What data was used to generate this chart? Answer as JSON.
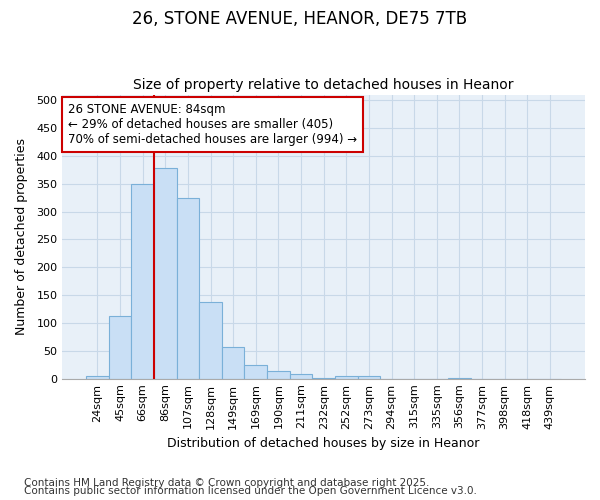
{
  "title1": "26, STONE AVENUE, HEANOR, DE75 7TB",
  "title2": "Size of property relative to detached houses in Heanor",
  "xlabel": "Distribution of detached houses by size in Heanor",
  "ylabel": "Number of detached properties",
  "categories": [
    "24sqm",
    "45sqm",
    "66sqm",
    "86sqm",
    "107sqm",
    "128sqm",
    "149sqm",
    "169sqm",
    "190sqm",
    "211sqm",
    "232sqm",
    "252sqm",
    "273sqm",
    "294sqm",
    "315sqm",
    "335sqm",
    "356sqm",
    "377sqm",
    "398sqm",
    "418sqm",
    "439sqm"
  ],
  "values": [
    5,
    113,
    350,
    378,
    325,
    137,
    57,
    25,
    14,
    9,
    2,
    4,
    4,
    0,
    0,
    0,
    2,
    0,
    0,
    0,
    0
  ],
  "bar_color": "#c9dff5",
  "bar_edge_color": "#7ab0d8",
  "bar_edge_width": 0.8,
  "vline_color": "#cc0000",
  "vline_pos": 2.5,
  "annotation_line1": "26 STONE AVENUE: 84sqm",
  "annotation_line2": "← 29% of detached houses are smaller (405)",
  "annotation_line3": "70% of semi-detached houses are larger (994) →",
  "annotation_box_color": "#cc0000",
  "ylim": [
    0,
    510
  ],
  "yticks": [
    0,
    50,
    100,
    150,
    200,
    250,
    300,
    350,
    400,
    450,
    500
  ],
  "grid_color": "#c8d8e8",
  "bg_color": "#e8f0f8",
  "footer1": "Contains HM Land Registry data © Crown copyright and database right 2025.",
  "footer2": "Contains public sector information licensed under the Open Government Licence v3.0.",
  "title_fontsize": 12,
  "subtitle_fontsize": 10,
  "label_fontsize": 9,
  "tick_fontsize": 8,
  "annotation_fontsize": 8.5,
  "footer_fontsize": 7.5
}
